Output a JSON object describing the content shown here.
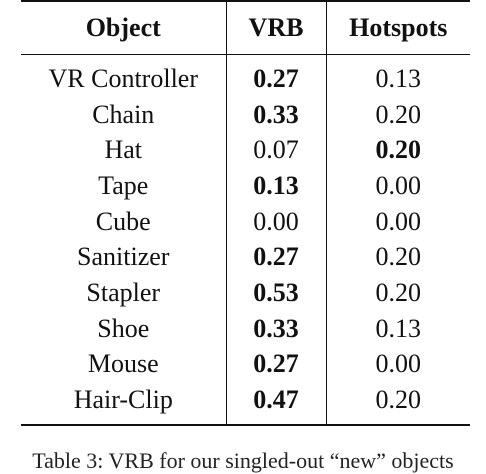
{
  "table": {
    "headers": [
      "Object",
      "VRB",
      "Hotspots"
    ],
    "rows": [
      {
        "object": "VR Controller",
        "vrb": "0.27",
        "hotspots": "0.13",
        "bold": "vrb"
      },
      {
        "object": "Chain",
        "vrb": "0.33",
        "hotspots": "0.20",
        "bold": "vrb"
      },
      {
        "object": "Hat",
        "vrb": "0.07",
        "hotspots": "0.20",
        "bold": "hotspots"
      },
      {
        "object": "Tape",
        "vrb": "0.13",
        "hotspots": "0.00",
        "bold": "vrb"
      },
      {
        "object": "Cube",
        "vrb": "0.00",
        "hotspots": "0.00",
        "bold": "none"
      },
      {
        "object": "Sanitizer",
        "vrb": "0.27",
        "hotspots": "0.20",
        "bold": "vrb"
      },
      {
        "object": "Stapler",
        "vrb": "0.53",
        "hotspots": "0.20",
        "bold": "vrb"
      },
      {
        "object": "Shoe",
        "vrb": "0.33",
        "hotspots": "0.13",
        "bold": "vrb"
      },
      {
        "object": "Mouse",
        "vrb": "0.27",
        "hotspots": "0.00",
        "bold": "vrb"
      },
      {
        "object": "Hair-Clip",
        "vrb": "0.47",
        "hotspots": "0.20",
        "bold": "vrb"
      }
    ]
  },
  "caption": "Table 3: VRB for our singled-out “new” objects"
}
